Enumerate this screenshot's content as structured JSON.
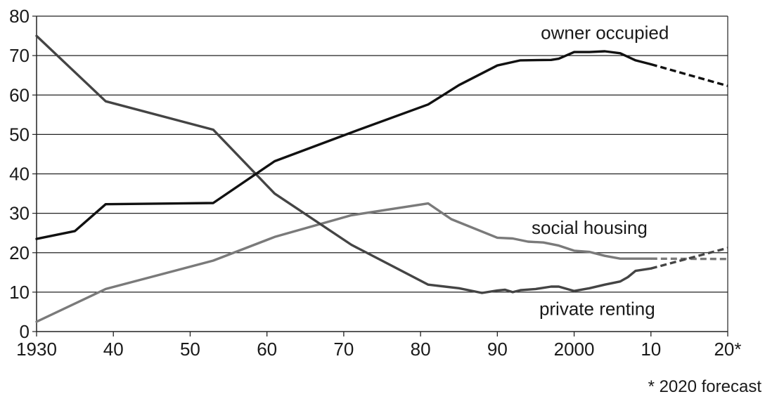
{
  "chart_data": {
    "type": "line",
    "xlim": [
      1930,
      2020
    ],
    "ylim": [
      0,
      80
    ],
    "yticks": [
      0,
      10,
      20,
      30,
      40,
      50,
      60,
      70,
      80
    ],
    "xticks": [
      {
        "value": 1930,
        "label": "1930"
      },
      {
        "value": 1940,
        "label": "40"
      },
      {
        "value": 1950,
        "label": "50"
      },
      {
        "value": 1960,
        "label": "60"
      },
      {
        "value": 1970,
        "label": "70"
      },
      {
        "value": 1980,
        "label": "80"
      },
      {
        "value": 1990,
        "label": "90"
      },
      {
        "value": 2000,
        "label": "2000"
      },
      {
        "value": 2010,
        "label": "10"
      },
      {
        "value": 2020,
        "label": "20*"
      }
    ],
    "grid": "horizontal",
    "footnote": "* 2020 forecast",
    "forecast_from": 2010,
    "series": [
      {
        "name": "owner occupied",
        "color": "#111111",
        "x": [
          1930,
          1935,
          1939,
          1953,
          1961,
          1971,
          1981,
          1985,
          1990,
          1993,
          1997,
          1998,
          2000,
          2002,
          2004,
          2006,
          2008,
          2010,
          2020
        ],
        "y": [
          23.5,
          25.5,
          32.3,
          32.6,
          43.2,
          50.5,
          57.6,
          62.5,
          67.5,
          68.8,
          68.9,
          69.2,
          70.9,
          70.9,
          71.1,
          70.6,
          68.8,
          67.8,
          62.3
        ]
      },
      {
        "name": "private renting",
        "color": "#444444",
        "x": [
          1930,
          1939,
          1953,
          1961,
          1971,
          1981,
          1985,
          1988,
          1990,
          1991,
          1992,
          1993,
          1995,
          1997,
          1998,
          2000,
          2002,
          2004,
          2006,
          2007,
          2008,
          2010,
          2020
        ],
        "y": [
          75.0,
          58.4,
          51.2,
          35.0,
          22.0,
          11.9,
          11.0,
          9.8,
          10.4,
          10.6,
          10.0,
          10.5,
          10.8,
          11.4,
          11.4,
          10.3,
          11.0,
          11.9,
          12.7,
          13.8,
          15.4,
          16.0,
          21.2
        ]
      },
      {
        "name": "social housing",
        "color": "#7a7a7a",
        "x": [
          1930,
          1939,
          1953,
          1961,
          1971,
          1981,
          1984,
          1990,
          1992,
          1994,
          1996,
          1998,
          2000,
          2002,
          2004,
          2006,
          2008,
          2010,
          2020
        ],
        "y": [
          2.5,
          10.8,
          18.0,
          24.0,
          29.5,
          32.5,
          28.5,
          23.8,
          23.6,
          22.8,
          22.6,
          21.8,
          20.5,
          20.2,
          19.2,
          18.5,
          18.5,
          18.5,
          18.4
        ]
      }
    ],
    "series_label_positions": [
      "top-right",
      "lower-right",
      "right"
    ]
  }
}
